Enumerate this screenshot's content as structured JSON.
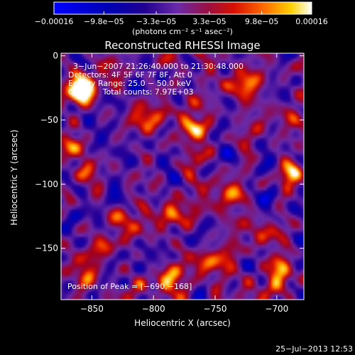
{
  "chart_data": {
    "type": "heatmap",
    "title": "Reconstructed RHESSI Image",
    "xlabel": "Heliocentric X (arcsec)",
    "ylabel": "Heliocentric Y (arcsec)",
    "x_range": [
      -875,
      -678
    ],
    "y_range": [
      -190,
      2
    ],
    "x_ticks": [
      {
        "value": -850,
        "label": "−850"
      },
      {
        "value": -800,
        "label": "−800"
      },
      {
        "value": -750,
        "label": "−750"
      },
      {
        "value": -700,
        "label": "−700"
      }
    ],
    "y_ticks": [
      {
        "value": 0,
        "label": "0"
      },
      {
        "value": -50,
        "label": "−50"
      },
      {
        "value": -100,
        "label": "−100"
      },
      {
        "value": -150,
        "label": "−150"
      }
    ],
    "colorbar": {
      "unit_label": "(photons cm⁻² s⁻¹ asec⁻²)",
      "ticks": [
        {
          "value": -0.00016,
          "label": "−0.00016"
        },
        {
          "value": -9.8e-05,
          "label": "−9.8e−05"
        },
        {
          "value": -3.3e-05,
          "label": "−3.3e−05"
        },
        {
          "value": 3.3e-05,
          "label": "3.3e−05"
        },
        {
          "value": 9.8e-05,
          "label": "9.8e−05"
        },
        {
          "value": 0.00016,
          "label": "0.00016"
        }
      ],
      "range": [
        -0.00016,
        0.00016
      ]
    },
    "annotations": {
      "time_range": "3−Jun−2007 21:26:40.000 to 21:30:48.000",
      "detectors": "Detectors: 4F 5F 6F 7F 8F, Att 0",
      "energy": "Energy Range: 25.0 − 50.0 keV",
      "clean": "Clean     Total counts: 7.97E+03",
      "peak": "Position of Peak = [−690,−168]"
    },
    "hot_spots": [
      {
        "x": -695,
        "y": -168,
        "v": 1.0
      },
      {
        "x": -858,
        "y": -25,
        "v": 0.95
      },
      {
        "x": -860,
        "y": -28,
        "v": 0.85
      },
      {
        "x": -770,
        "y": -56,
        "v": 0.85
      },
      {
        "x": -730,
        "y": -22,
        "v": 0.75
      },
      {
        "x": -808,
        "y": -47,
        "v": 0.7
      },
      {
        "x": -825,
        "y": -127,
        "v": 0.75
      },
      {
        "x": -788,
        "y": -122,
        "v": 0.65
      },
      {
        "x": -690,
        "y": -92,
        "v": 0.65
      },
      {
        "x": -745,
        "y": -105,
        "v": 0.6
      },
      {
        "x": -715,
        "y": -135,
        "v": 0.7
      },
      {
        "x": -755,
        "y": -160,
        "v": 0.7
      },
      {
        "x": -855,
        "y": -170,
        "v": 0.75
      },
      {
        "x": -790,
        "y": -175,
        "v": 0.6
      },
      {
        "x": -852,
        "y": -90,
        "v": 0.6
      },
      {
        "x": -866,
        "y": -70,
        "v": 0.55
      },
      {
        "x": -700,
        "y": -45,
        "v": 0.45
      },
      {
        "x": -720,
        "y": -180,
        "v": 0.5
      },
      {
        "x": -830,
        "y": -10,
        "v": 0.4
      },
      {
        "x": -840,
        "y": -150,
        "v": 0.45
      }
    ],
    "cold_spots": [
      {
        "x": -845,
        "y": -62,
        "v": -0.45
      },
      {
        "x": -810,
        "y": -12,
        "v": -0.35
      },
      {
        "x": -792,
        "y": -88,
        "v": -0.4
      },
      {
        "x": -740,
        "y": -75,
        "v": -0.4
      },
      {
        "x": -832,
        "y": -105,
        "v": -0.35
      },
      {
        "x": -705,
        "y": -110,
        "v": -0.35
      },
      {
        "x": -770,
        "y": -140,
        "v": -0.35
      },
      {
        "x": -810,
        "y": -155,
        "v": -0.3
      },
      {
        "x": -862,
        "y": -120,
        "v": -0.3
      },
      {
        "x": -750,
        "y": -30,
        "v": -0.3
      }
    ],
    "grid": false,
    "colormap": [
      "#0000ff",
      "#0000c0",
      "#2000a0",
      "#5020a0",
      "#8030a0",
      "#c00000",
      "#ff6000",
      "#ffc000",
      "#ffffff"
    ]
  },
  "footer": {
    "timestamp": "25−Jul−2013 12:53"
  }
}
